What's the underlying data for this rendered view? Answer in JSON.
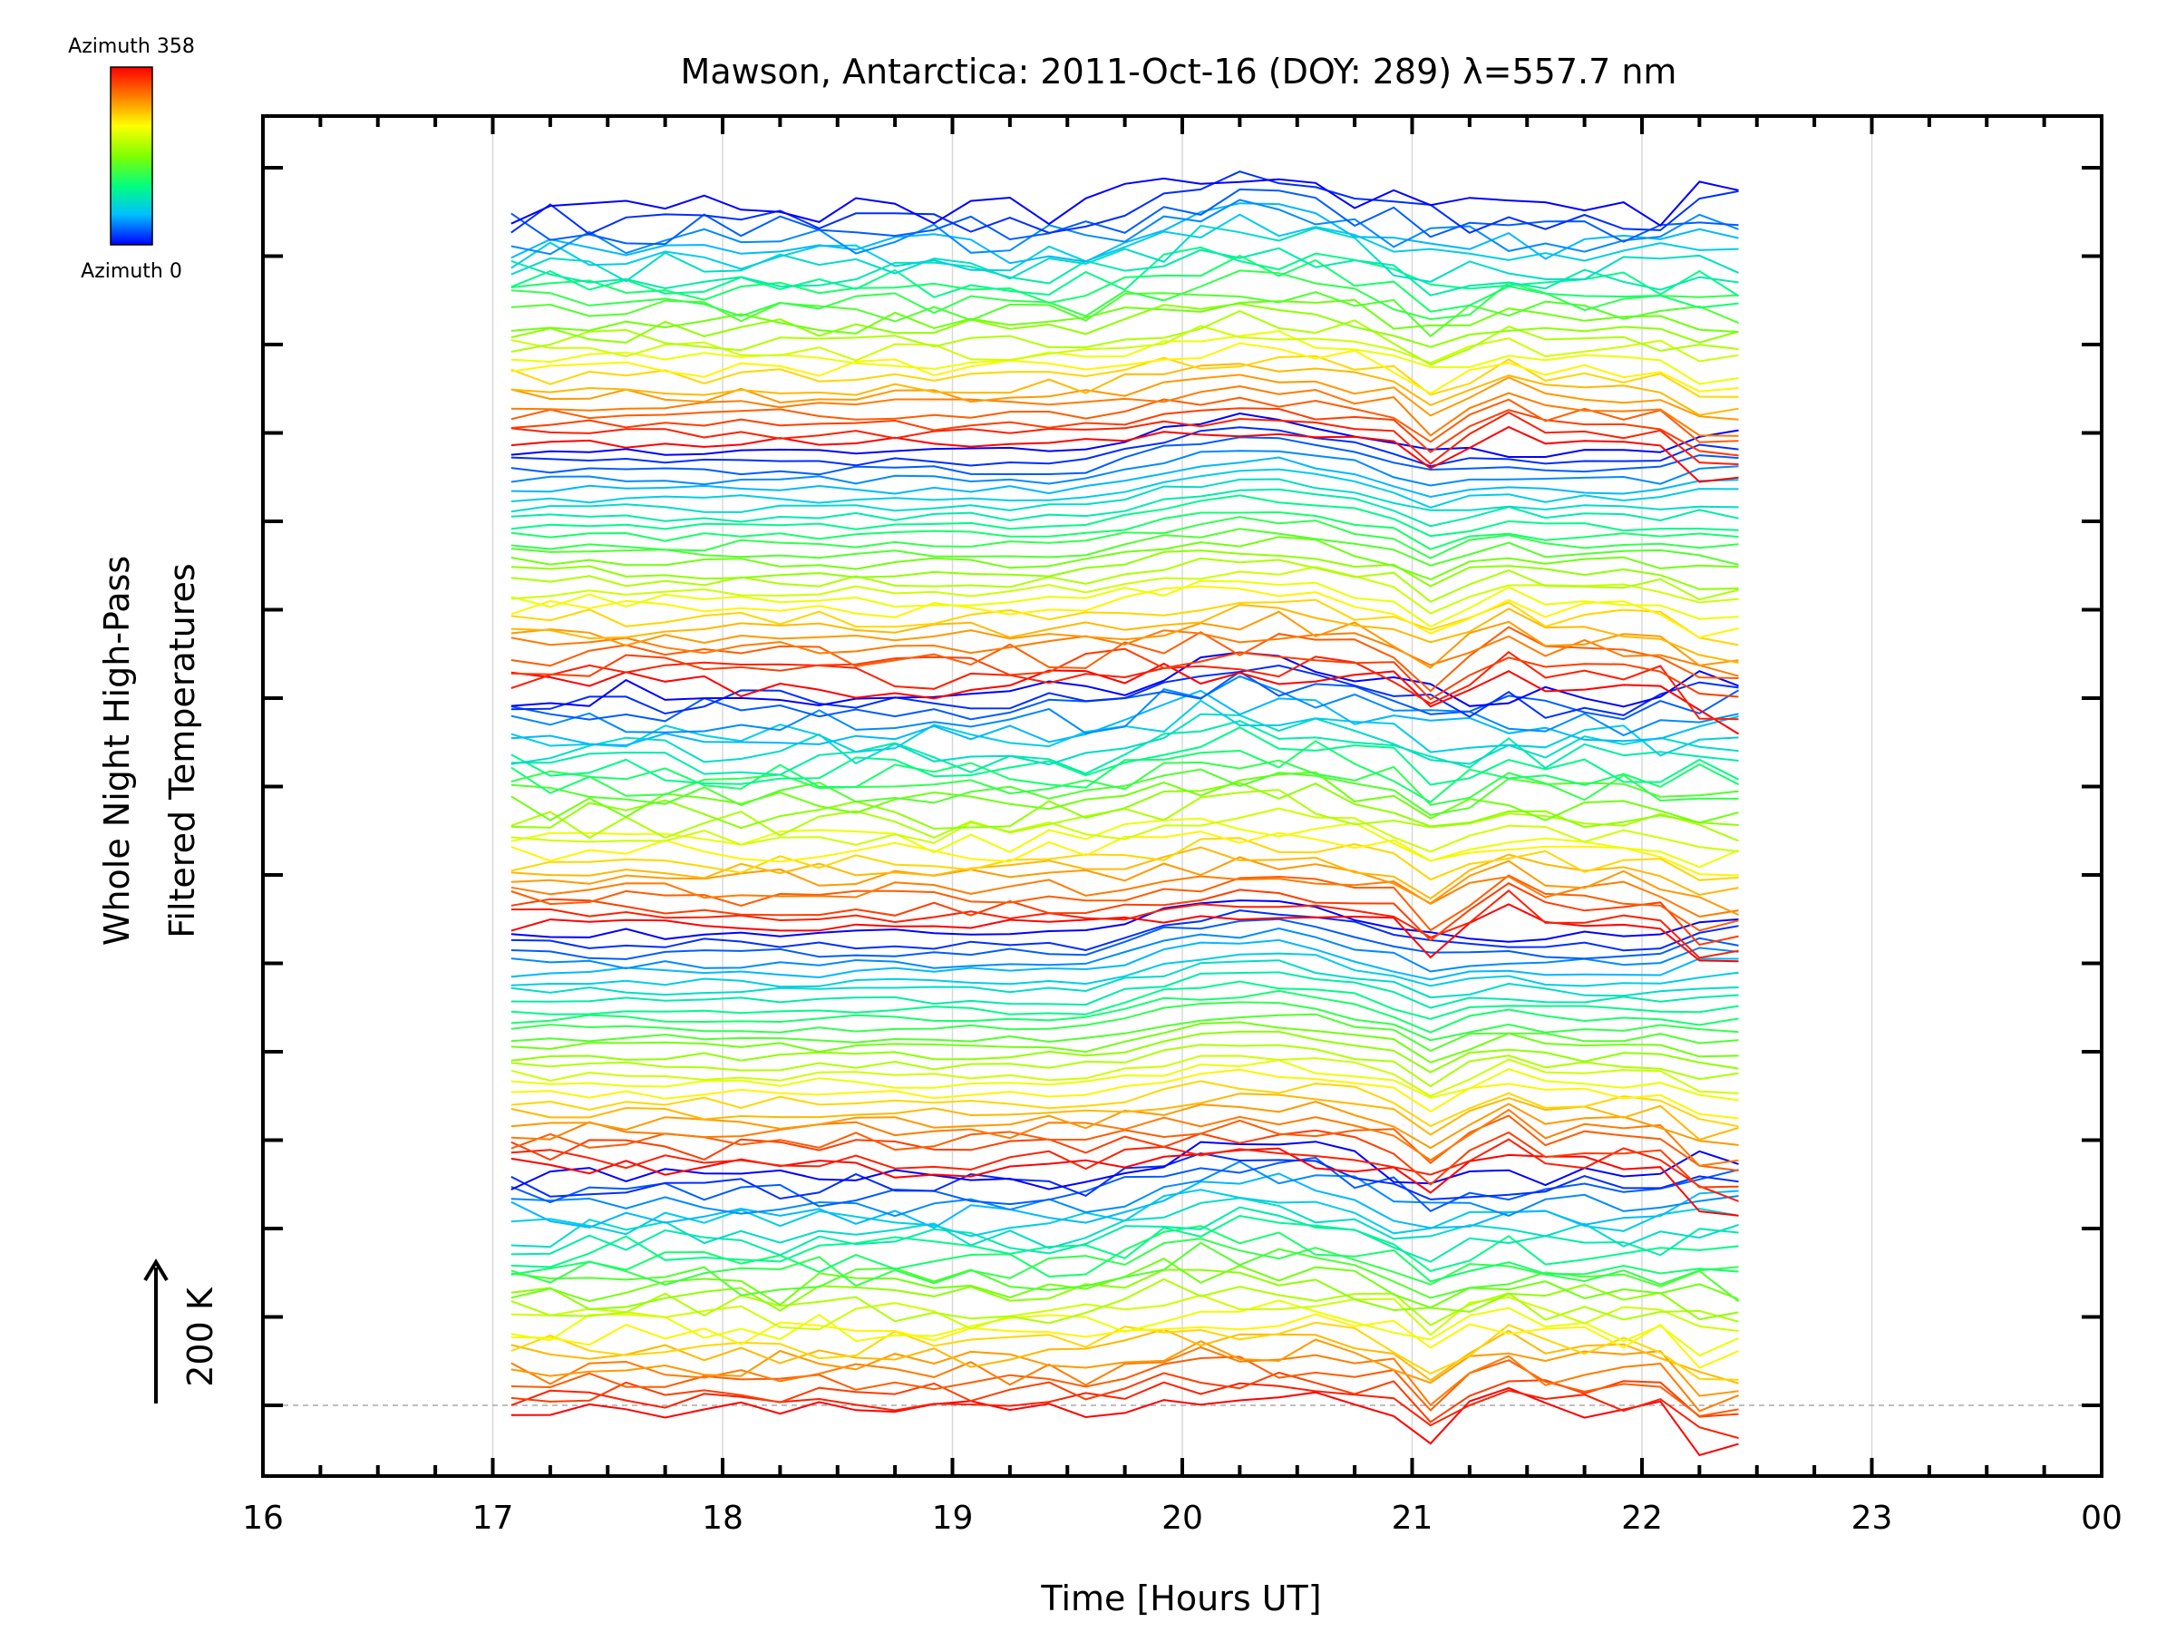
{
  "chart_data": {
    "type": "line",
    "title": "Mawson, Antarctica: 2011-Oct-16 (DOY: 289) λ=557.7 nm",
    "xlabel": "Time [Hours UT]",
    "ylabel_line1": "Whole Night High-Pass",
    "ylabel_line2": "Filtered Temperatures",
    "scale_bar_label": "200 K",
    "x_tick_labels": [
      "16",
      "17",
      "18",
      "19",
      "20",
      "21",
      "22",
      "23",
      "00"
    ],
    "xlim": [
      16,
      24
    ],
    "grid": true,
    "colorbar": {
      "top_label": "Azimuth 358",
      "bottom_label": "Azimuth 0",
      "colors": [
        "#ff0000",
        "#ff8000",
        "#ffff00",
        "#80ff00",
        "#00ff80",
        "#00c0ff",
        "#0000ff"
      ]
    },
    "time_hours": [
      17.08,
      17.25,
      17.42,
      17.58,
      17.75,
      17.92,
      18.08,
      18.25,
      18.42,
      18.58,
      18.75,
      18.92,
      19.08,
      19.25,
      19.42,
      19.58,
      19.75,
      19.92,
      20.08,
      20.25,
      20.42,
      20.58,
      20.75,
      20.92,
      21.08,
      21.25,
      21.42,
      21.58,
      21.75,
      21.92,
      22.08,
      22.25,
      22.42
    ],
    "series_note_count": 130
  }
}
